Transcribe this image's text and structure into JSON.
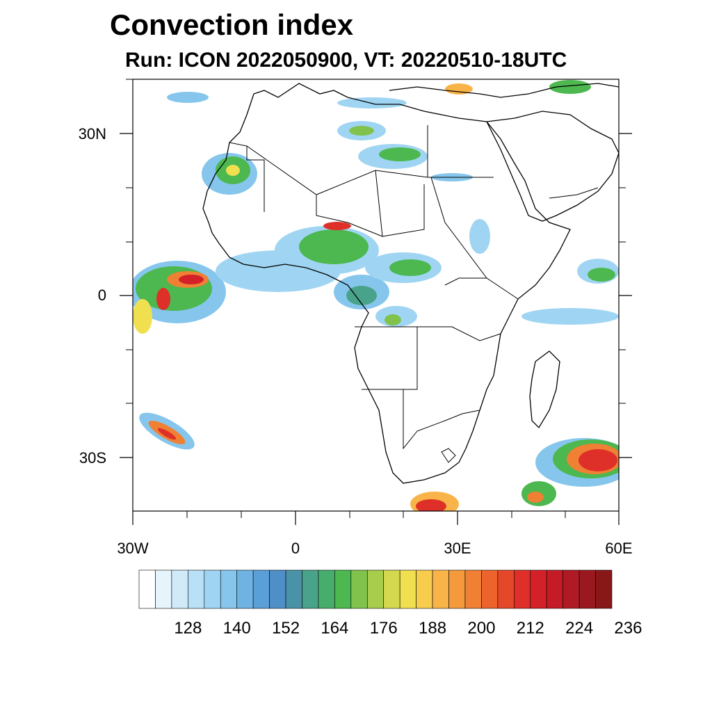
{
  "title": "Convection index",
  "subtitle": "Run: ICON 2022050900,  VT: 20220510-18UTC",
  "axes": {
    "lat_labels": [
      "30N",
      "0",
      "30S"
    ],
    "lon_labels": [
      "30W",
      "0",
      "30E",
      "60E"
    ],
    "lat_range": [
      -40,
      40
    ],
    "lon_range": [
      -30,
      60
    ]
  },
  "colorbar": {
    "labels": [
      "128",
      "140",
      "152",
      "164",
      "176",
      "188",
      "200",
      "212",
      "224",
      "236"
    ],
    "colors": [
      "#ffffff",
      "#e6f4fc",
      "#d0eaf8",
      "#b8e0f6",
      "#9fd5f2",
      "#86c6ec",
      "#6fb3e3",
      "#5b9fd8",
      "#4f8fc8",
      "#4a92a8",
      "#48a38a",
      "#47ad6c",
      "#4cb84f",
      "#80c24c",
      "#a8cc4c",
      "#d4d84e",
      "#f0e050",
      "#f8cc4c",
      "#f8b448",
      "#f49a3c",
      "#f08034",
      "#ec642c",
      "#e44828",
      "#de3028",
      "#d42028",
      "#c41c26",
      "#b01a24",
      "#9a1820",
      "#881818"
    ]
  },
  "map": {
    "land_color": "#ffffff",
    "border_color": "#000000"
  }
}
